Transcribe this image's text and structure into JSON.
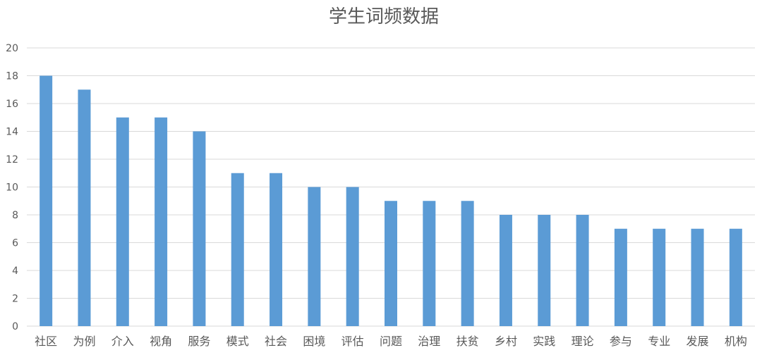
{
  "chart_data": {
    "type": "bar",
    "title": "学生词频数据",
    "categories": [
      "社区",
      "为例",
      "介入",
      "视角",
      "服务",
      "模式",
      "社会",
      "困境",
      "评估",
      "问题",
      "治理",
      "扶贫",
      "乡村",
      "实践",
      "理论",
      "参与",
      "专业",
      "发展",
      "机构"
    ],
    "series": [
      {
        "values": [
          18,
          17,
          15,
          15,
          14,
          11,
          11,
          10,
          10,
          9,
          9,
          9,
          8,
          8,
          8,
          7,
          7,
          7,
          7
        ]
      }
    ],
    "ylim": [
      0,
      20
    ],
    "yticks": [
      0,
      2,
      4,
      6,
      8,
      10,
      12,
      14,
      16,
      18,
      20
    ],
    "xlabel": "",
    "ylabel": "",
    "grid": true,
    "legend": "none",
    "colors": {
      "bar": "#5B9BD5",
      "grid": "#D9D9D9",
      "text": "#595959"
    }
  }
}
